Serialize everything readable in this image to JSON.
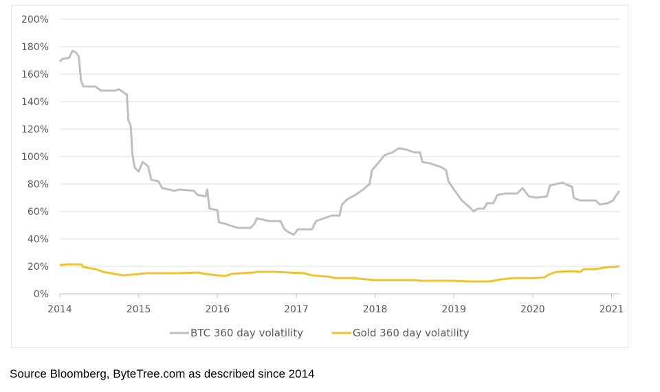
{
  "source_note": "Source Bloomberg, ByteTree.com as described since 2014",
  "chart_data": {
    "type": "line",
    "title": "",
    "xlabel": "",
    "ylabel": "",
    "ylim": [
      0,
      200
    ],
    "xlim": [
      2014,
      2021.1
    ],
    "y_ticks": [
      0,
      20,
      40,
      60,
      80,
      100,
      120,
      140,
      160,
      180,
      200
    ],
    "y_tick_labels": [
      "0%",
      "20%",
      "40%",
      "60%",
      "80%",
      "100%",
      "120%",
      "140%",
      "160%",
      "180%",
      "200%"
    ],
    "x_ticks": [
      2014,
      2015,
      2016,
      2017,
      2018,
      2019,
      2020,
      2021
    ],
    "x_tick_labels": [
      "2014",
      "2015",
      "2016",
      "2017",
      "2018",
      "2019",
      "2020",
      "2021"
    ],
    "grid": "horizontal",
    "legend_position": "bottom",
    "series": [
      {
        "name": "BTC 360 day volatility",
        "color": "#bfbfbf",
        "points": [
          [
            2014.0,
            169
          ],
          [
            2014.03,
            171
          ],
          [
            2014.12,
            172
          ],
          [
            2014.16,
            177
          ],
          [
            2014.2,
            176
          ],
          [
            2014.24,
            173
          ],
          [
            2014.27,
            155
          ],
          [
            2014.3,
            151
          ],
          [
            2014.45,
            151
          ],
          [
            2014.52,
            148
          ],
          [
            2014.7,
            148
          ],
          [
            2014.75,
            149
          ],
          [
            2014.85,
            145
          ],
          [
            2014.87,
            127
          ],
          [
            2014.9,
            122
          ],
          [
            2014.92,
            102
          ],
          [
            2014.95,
            92
          ],
          [
            2015.0,
            89
          ],
          [
            2015.05,
            96
          ],
          [
            2015.12,
            93
          ],
          [
            2015.16,
            83
          ],
          [
            2015.25,
            82
          ],
          [
            2015.3,
            77
          ],
          [
            2015.38,
            76
          ],
          [
            2015.45,
            75
          ],
          [
            2015.52,
            76
          ],
          [
            2015.7,
            75
          ],
          [
            2015.75,
            72
          ],
          [
            2015.85,
            71
          ],
          [
            2015.87,
            76
          ],
          [
            2015.9,
            62
          ],
          [
            2016.0,
            61
          ],
          [
            2016.02,
            52
          ],
          [
            2016.1,
            51
          ],
          [
            2016.2,
            49
          ],
          [
            2016.27,
            48
          ],
          [
            2016.42,
            48
          ],
          [
            2016.47,
            51
          ],
          [
            2016.5,
            55
          ],
          [
            2016.65,
            53
          ],
          [
            2016.8,
            53
          ],
          [
            2016.85,
            47
          ],
          [
            2016.9,
            45
          ],
          [
            2016.97,
            43
          ],
          [
            2017.02,
            47
          ],
          [
            2017.2,
            47
          ],
          [
            2017.25,
            53
          ],
          [
            2017.35,
            55
          ],
          [
            2017.45,
            57
          ],
          [
            2017.55,
            57
          ],
          [
            2017.58,
            65
          ],
          [
            2017.65,
            69
          ],
          [
            2017.75,
            72
          ],
          [
            2017.85,
            76
          ],
          [
            2017.93,
            80
          ],
          [
            2017.96,
            90
          ],
          [
            2018.05,
            96
          ],
          [
            2018.12,
            101
          ],
          [
            2018.22,
            103
          ],
          [
            2018.3,
            106
          ],
          [
            2018.4,
            105
          ],
          [
            2018.5,
            103
          ],
          [
            2018.57,
            103
          ],
          [
            2018.6,
            96
          ],
          [
            2018.7,
            95
          ],
          [
            2018.85,
            92
          ],
          [
            2018.9,
            90
          ],
          [
            2018.93,
            82
          ],
          [
            2019.0,
            76
          ],
          [
            2019.1,
            68
          ],
          [
            2019.2,
            63
          ],
          [
            2019.25,
            60
          ],
          [
            2019.3,
            62
          ],
          [
            2019.38,
            62
          ],
          [
            2019.42,
            66
          ],
          [
            2019.5,
            66
          ],
          [
            2019.55,
            72
          ],
          [
            2019.65,
            73
          ],
          [
            2019.8,
            73
          ],
          [
            2019.87,
            77
          ],
          [
            2019.95,
            71
          ],
          [
            2020.05,
            70
          ],
          [
            2020.18,
            71
          ],
          [
            2020.22,
            79
          ],
          [
            2020.3,
            80
          ],
          [
            2020.38,
            81
          ],
          [
            2020.45,
            79
          ],
          [
            2020.5,
            78
          ],
          [
            2020.52,
            70
          ],
          [
            2020.6,
            68
          ],
          [
            2020.8,
            68
          ],
          [
            2020.85,
            65
          ],
          [
            2020.95,
            66
          ],
          [
            2021.02,
            68
          ],
          [
            2021.05,
            71
          ],
          [
            2021.1,
            75
          ]
        ]
      },
      {
        "name": "Gold 360 day volatility",
        "color": "#f2c12e",
        "points": [
          [
            2014.0,
            21
          ],
          [
            2014.1,
            21.5
          ],
          [
            2014.27,
            21.5
          ],
          [
            2014.3,
            19.5
          ],
          [
            2014.45,
            18
          ],
          [
            2014.55,
            16
          ],
          [
            2014.7,
            14.5
          ],
          [
            2014.8,
            13.5
          ],
          [
            2014.92,
            14
          ],
          [
            2015.1,
            15
          ],
          [
            2015.3,
            15
          ],
          [
            2015.5,
            15
          ],
          [
            2015.75,
            15.5
          ],
          [
            2015.85,
            14.5
          ],
          [
            2016.0,
            13.5
          ],
          [
            2016.1,
            13
          ],
          [
            2016.18,
            14.5
          ],
          [
            2016.3,
            15
          ],
          [
            2016.45,
            15.5
          ],
          [
            2016.5,
            16
          ],
          [
            2016.7,
            16
          ],
          [
            2016.9,
            15.5
          ],
          [
            2017.1,
            15
          ],
          [
            2017.2,
            13.5
          ],
          [
            2017.4,
            12.5
          ],
          [
            2017.5,
            11.5
          ],
          [
            2017.7,
            11.5
          ],
          [
            2017.9,
            10.5
          ],
          [
            2018.0,
            10
          ],
          [
            2018.3,
            10
          ],
          [
            2018.5,
            10
          ],
          [
            2018.6,
            9.5
          ],
          [
            2018.8,
            9.5
          ],
          [
            2019.0,
            9.5
          ],
          [
            2019.2,
            9
          ],
          [
            2019.35,
            9
          ],
          [
            2019.45,
            9
          ],
          [
            2019.5,
            9.5
          ],
          [
            2019.6,
            10.5
          ],
          [
            2019.75,
            11.5
          ],
          [
            2020.0,
            11.5
          ],
          [
            2020.15,
            12
          ],
          [
            2020.2,
            14
          ],
          [
            2020.3,
            16
          ],
          [
            2020.5,
            16.5
          ],
          [
            2020.6,
            16
          ],
          [
            2020.65,
            18
          ],
          [
            2020.8,
            18
          ],
          [
            2020.95,
            19.5
          ],
          [
            2021.1,
            20
          ]
        ]
      }
    ]
  }
}
